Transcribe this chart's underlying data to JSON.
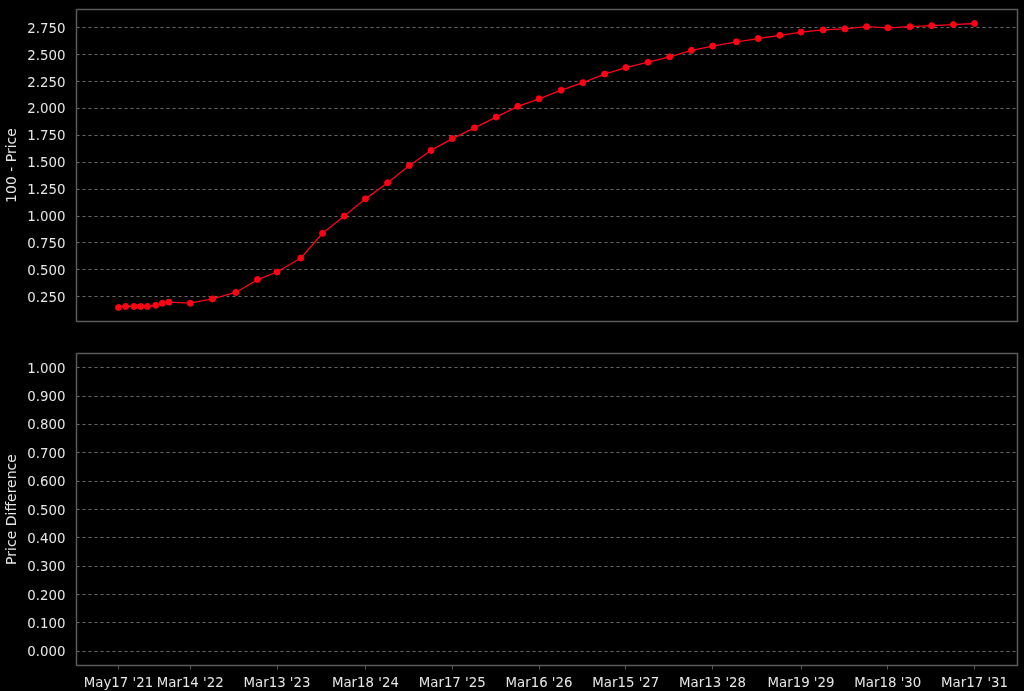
{
  "chart_data": [
    {
      "type": "line",
      "ylabel": "100 - Price",
      "tick_labels": "y",
      "grid": "y",
      "marker": "circle",
      "line_style": "solid",
      "xlim": [
        "2020-11-22",
        "2031-09-13"
      ],
      "ylim": [
        0.02,
        2.92
      ],
      "yticks": [
        {
          "value": 0.25,
          "label": "0.250"
        },
        {
          "value": 0.5,
          "label": "0.500"
        },
        {
          "value": 0.75,
          "label": "0.750"
        },
        {
          "value": 1.0,
          "label": "1.000"
        },
        {
          "value": 1.25,
          "label": "1.250"
        },
        {
          "value": 1.5,
          "label": "1.500"
        },
        {
          "value": 1.75,
          "label": "1.750"
        },
        {
          "value": 2.0,
          "label": "2.000"
        },
        {
          "value": 2.25,
          "label": "2.250"
        },
        {
          "value": 2.5,
          "label": "2.500"
        },
        {
          "value": 2.75,
          "label": "2.750"
        }
      ],
      "x": [
        "2021-05-17",
        "2021-06-16",
        "2021-07-21",
        "2021-08-18",
        "2021-09-15",
        "2021-10-20",
        "2021-11-17",
        "2021-12-15",
        "2022-03-14",
        "2022-06-15",
        "2022-09-21",
        "2022-12-21",
        "2023-03-13",
        "2023-06-21",
        "2023-09-20",
        "2023-12-20",
        "2024-03-18",
        "2024-06-19",
        "2024-09-18",
        "2024-12-18",
        "2025-03-17",
        "2025-06-18",
        "2025-09-17",
        "2025-12-17",
        "2026-03-16",
        "2026-06-17",
        "2026-09-16",
        "2026-12-16",
        "2027-03-15",
        "2027-06-16",
        "2027-09-15",
        "2027-12-15",
        "2028-03-13",
        "2028-06-21",
        "2028-09-20",
        "2028-12-20",
        "2029-03-19",
        "2029-06-20",
        "2029-09-19",
        "2029-12-19",
        "2030-03-18",
        "2030-06-19",
        "2030-09-18",
        "2030-12-18",
        "2031-03-17"
      ],
      "series": [
        {
          "color": "#ff0015",
          "values": [
            0.15,
            0.16,
            0.16,
            0.16,
            0.16,
            0.17,
            0.19,
            0.2,
            0.19,
            0.23,
            0.29,
            0.41,
            0.48,
            0.61,
            0.84,
            1.0,
            1.16,
            1.31,
            1.47,
            1.61,
            1.72,
            1.82,
            1.92,
            2.02,
            2.09,
            2.17,
            2.24,
            2.32,
            2.38,
            2.43,
            2.48,
            2.54,
            2.58,
            2.62,
            2.65,
            2.68,
            2.71,
            2.73,
            2.74,
            2.76,
            2.75,
            2.76,
            2.77,
            2.78,
            2.79
          ]
        }
      ]
    },
    {
      "type": "line",
      "ylabel": "Price Difference",
      "grid": "y",
      "xlim": [
        "2020-11-22",
        "2031-09-13"
      ],
      "xticks": [
        {
          "value": "2021-05-17",
          "label": "May17 '21"
        },
        {
          "value": "2022-03-14",
          "label": "Mar14 '22"
        },
        {
          "value": "2023-03-13",
          "label": "Mar13 '23"
        },
        {
          "value": "2024-03-18",
          "label": "Mar18 '24"
        },
        {
          "value": "2025-03-17",
          "label": "Mar17 '25"
        },
        {
          "value": "2026-03-16",
          "label": "Mar16 '26"
        },
        {
          "value": "2027-03-15",
          "label": "Mar15 '27"
        },
        {
          "value": "2028-03-13",
          "label": "Mar13 '28"
        },
        {
          "value": "2029-03-19",
          "label": "Mar19 '29"
        },
        {
          "value": "2030-03-18",
          "label": "Mar18 '30"
        },
        {
          "value": "2031-03-17",
          "label": "Mar17 '31"
        }
      ],
      "ylim": [
        -0.05,
        1.05
      ],
      "yticks": [
        {
          "value": 0.0,
          "label": "0.000"
        },
        {
          "value": 0.1,
          "label": "0.100"
        },
        {
          "value": 0.2,
          "label": "0.200"
        },
        {
          "value": 0.3,
          "label": "0.300"
        },
        {
          "value": 0.4,
          "label": "0.400"
        },
        {
          "value": 0.5,
          "label": "0.500"
        },
        {
          "value": 0.6,
          "label": "0.600"
        },
        {
          "value": 0.7,
          "label": "0.700"
        },
        {
          "value": 0.8,
          "label": "0.800"
        },
        {
          "value": 0.9,
          "label": "0.900"
        },
        {
          "value": 1.0,
          "label": "1.000"
        }
      ]
    }
  ]
}
